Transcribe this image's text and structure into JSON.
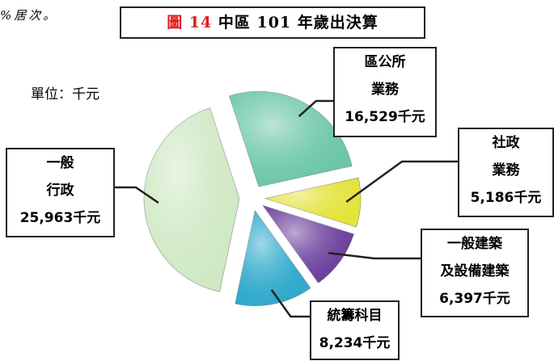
{
  "note": "%居次。",
  "chart_data": {
    "type": "pie",
    "title": "圖 14 中區 101 年歲出決算",
    "subtitle": "單位：千元",
    "categories": [
      "區公所\n業務",
      "社政\n業務",
      "一般建築\n及設備建築",
      "統籌科目",
      "一般\n行政"
    ],
    "values": [
      16529,
      5186,
      6397,
      8234,
      25963
    ],
    "value_labels": [
      "16,529千元",
      "5,186千元",
      "6,397千元",
      "8,234千元",
      "25,963千元"
    ],
    "colors": [
      "#6cc7a6",
      "#e4e33a",
      "#6b3f9c",
      "#2ea9cb",
      "#cfe9c4"
    ]
  }
}
